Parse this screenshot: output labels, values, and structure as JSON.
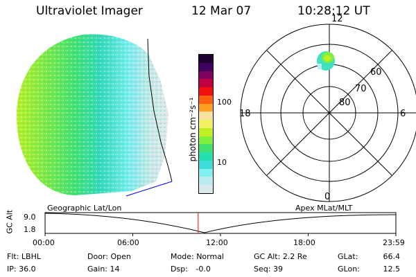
{
  "header": {
    "instrument": "Ultraviolet Imager",
    "date": "12 Mar 07",
    "time": "10:28:12 UT"
  },
  "colorbar": {
    "unit_label": "photon cm⁻²s⁻¹",
    "ticks": [
      "100",
      "10"
    ],
    "colors": [
      "#d9e8ea",
      "#b8ecf0",
      "#7ff0f0",
      "#3cdcd8",
      "#22e0b0",
      "#40e070",
      "#80f040",
      "#c0f020",
      "#f0f060",
      "#f8e0a0",
      "#ffa020",
      "#ff6010",
      "#f01010",
      "#c00040",
      "#800060",
      "#400060",
      "#200030"
    ]
  },
  "polar_plot": {
    "mlt_labels": {
      "top": "12",
      "left": "18",
      "right": "6",
      "bottom": "0"
    },
    "lat_labels": [
      "60",
      "70",
      "80"
    ]
  },
  "timeline": {
    "left_label": "Geographic Lat/Lon",
    "right_label": "Apex MLat/MLT",
    "axis_label": "GC Alt",
    "y_max": "9.0",
    "y_min": "1.8",
    "x_ticks": [
      "00:00",
      "06:00",
      "12:00",
      "18:00",
      "23:59"
    ],
    "current_time_fraction": 0.4364,
    "marker_color": "#ff0000"
  },
  "status": {
    "row1": [
      {
        "label": "Flt:",
        "value": "LBHL"
      },
      {
        "label": "Door:",
        "value": "Open"
      },
      {
        "label": "Mode:",
        "value": "Normal"
      },
      {
        "label": "GC Alt:",
        "value": "2.2 Re"
      },
      {
        "label": "GLat:",
        "value": "66.4"
      }
    ],
    "row2": [
      {
        "label": "IP:",
        "value": "36.0"
      },
      {
        "label": "Gain:",
        "value": "14"
      },
      {
        "label": "Dsp:",
        "value": "-0.0"
      },
      {
        "label": "Seq:",
        "value": "39"
      },
      {
        "label": "GLon:",
        "value": "12.5"
      }
    ]
  }
}
